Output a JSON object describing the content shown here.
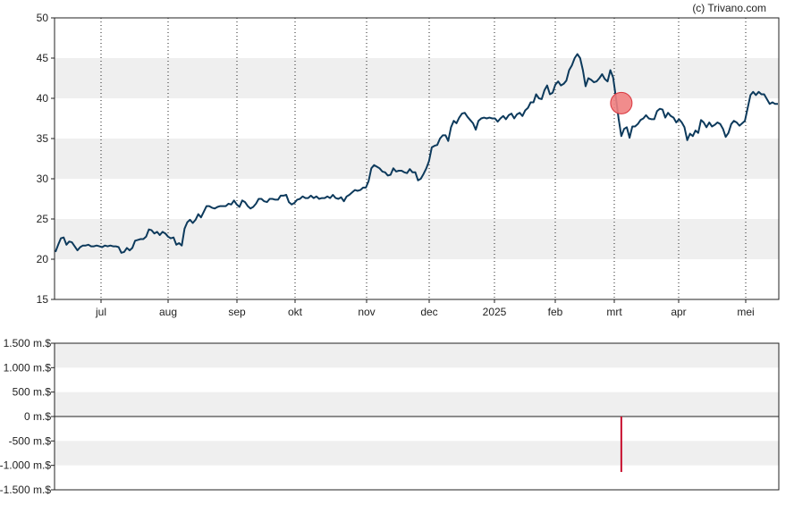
{
  "credit": "(c) Trivano.com",
  "colors": {
    "background": "#ffffff",
    "band": "#efefef",
    "frame": "#222222",
    "price_line": "#0d3a5c",
    "marker_fill": "#f08080",
    "marker_stroke": "#d9363e",
    "volume_bar": "#c8102e",
    "grid": "#222222"
  },
  "chart_data": [
    {
      "type": "line",
      "title": "",
      "xlabel": "",
      "ylabel": "",
      "ylim": [
        15,
        50
      ],
      "y_ticks": [
        "15",
        "20",
        "25",
        "30",
        "35",
        "40",
        "45",
        "50"
      ],
      "x_ticks": [
        "jul",
        "aug",
        "sep",
        "okt",
        "nov",
        "dec",
        "2025",
        "feb",
        "mrt",
        "apr",
        "mei"
      ],
      "grid": "vertical dotted at month starts, alternating horizontal bands",
      "series": [
        {
          "values": [
            20.9,
            21.8,
            22.6,
            22.7,
            21.8,
            22.2,
            22.1,
            21.6,
            21.1,
            21.5,
            21.7,
            21.7,
            21.8,
            21.6,
            21.6,
            21.7,
            21.6,
            21.5,
            21.7,
            21.6,
            21.7,
            21.6,
            21.6,
            21.5,
            20.8,
            20.9,
            21.4,
            21.1,
            21.4,
            22.3,
            22.4,
            22.5,
            22.5,
            22.8,
            23.7,
            23.6,
            23.2,
            23.4,
            23.0,
            23.4,
            23.2,
            22.8,
            22.6,
            22.7,
            21.8,
            22.0,
            21.7,
            23.8,
            24.6,
            24.9,
            24.5,
            24.9,
            25.6,
            25.2,
            25.9,
            26.6,
            26.6,
            26.4,
            26.3,
            26.5,
            26.6,
            26.6,
            26.6,
            26.9,
            26.8,
            27.3,
            26.8,
            26.5,
            27.3,
            27.1,
            26.6,
            26.3,
            26.5,
            26.9,
            27.5,
            27.5,
            27.2,
            27.1,
            27.5,
            27.5,
            27.4,
            27.4,
            27.9,
            27.9,
            28.0,
            27.1,
            26.8,
            27.0,
            27.4,
            27.5,
            27.8,
            27.6,
            27.6,
            27.9,
            27.6,
            27.8,
            27.5,
            27.6,
            27.6,
            27.8,
            27.6,
            28.0,
            27.6,
            27.5,
            27.7,
            27.2,
            27.8,
            28.0,
            28.3,
            28.6,
            28.5,
            28.6,
            28.9,
            28.9,
            29.7,
            31.3,
            31.7,
            31.5,
            31.3,
            30.9,
            30.8,
            30.4,
            30.5,
            31.3,
            30.9,
            31.0,
            31.0,
            30.8,
            30.7,
            31.2,
            30.8,
            30.8,
            29.8,
            30.0,
            30.6,
            31.3,
            32.2,
            33.9,
            34.1,
            34.2,
            35.0,
            35.4,
            35.4,
            34.7,
            36.4,
            37.2,
            36.9,
            37.6,
            38.1,
            38.2,
            37.7,
            37.3,
            36.9,
            36.1,
            37.2,
            37.5,
            37.6,
            37.5,
            37.6,
            37.5,
            37.5,
            37.1,
            37.5,
            37.8,
            37.4,
            37.9,
            38.1,
            37.5,
            38.0,
            38.2,
            37.8,
            38.5,
            38.8,
            39.5,
            39.5,
            40.5,
            40.0,
            39.9,
            41.0,
            41.6,
            40.5,
            40.7,
            41.7,
            42.1,
            41.6,
            41.8,
            42.2,
            43.5,
            44.1,
            45.0,
            45.5,
            45.0,
            43.5,
            41.5,
            42.5,
            42.3,
            42.0,
            42.1,
            42.5,
            43.0,
            42.4,
            42.1,
            43.5,
            42.6,
            40.2,
            37.5,
            35.3,
            36.2,
            36.4,
            35.1,
            36.5,
            36.5,
            36.8,
            37.3,
            37.5,
            37.9,
            37.5,
            37.4,
            37.4,
            38.4,
            38.7,
            38.6,
            37.6,
            38.2,
            37.8,
            37.6,
            37.0,
            37.4,
            37.0,
            36.4,
            34.8,
            35.6,
            35.3,
            36.0,
            35.7,
            37.3,
            37.0,
            36.4,
            37.0,
            36.5,
            36.7,
            37.0,
            36.8,
            36.2,
            35.2,
            35.7,
            36.8,
            37.2,
            37.0,
            36.6,
            36.9,
            37.2,
            38.8,
            40.4,
            40.8,
            40.4,
            40.8,
            40.5,
            40.5,
            39.9,
            39.3,
            39.5,
            39.3,
            39.3
          ]
        }
      ],
      "annotations": [
        {
          "type": "event-marker",
          "x_index": 206,
          "y": 39.4
        }
      ]
    },
    {
      "type": "bar",
      "title": "",
      "xlabel": "",
      "ylabel": "",
      "ylim": [
        -1500,
        1500
      ],
      "y_tick_values": [
        1500,
        1000,
        500,
        0,
        -500,
        -1000,
        -1500
      ],
      "y_ticks": [
        "1.500 m.$",
        "1.000 m.$",
        "500 m.$",
        "0 m.$",
        "-500 m.$",
        "-1.000 m.$",
        "-1.500 m.$"
      ],
      "series": [
        {
          "bars": [
            {
              "x_index": 206,
              "value": -1135
            }
          ]
        }
      ]
    }
  ]
}
